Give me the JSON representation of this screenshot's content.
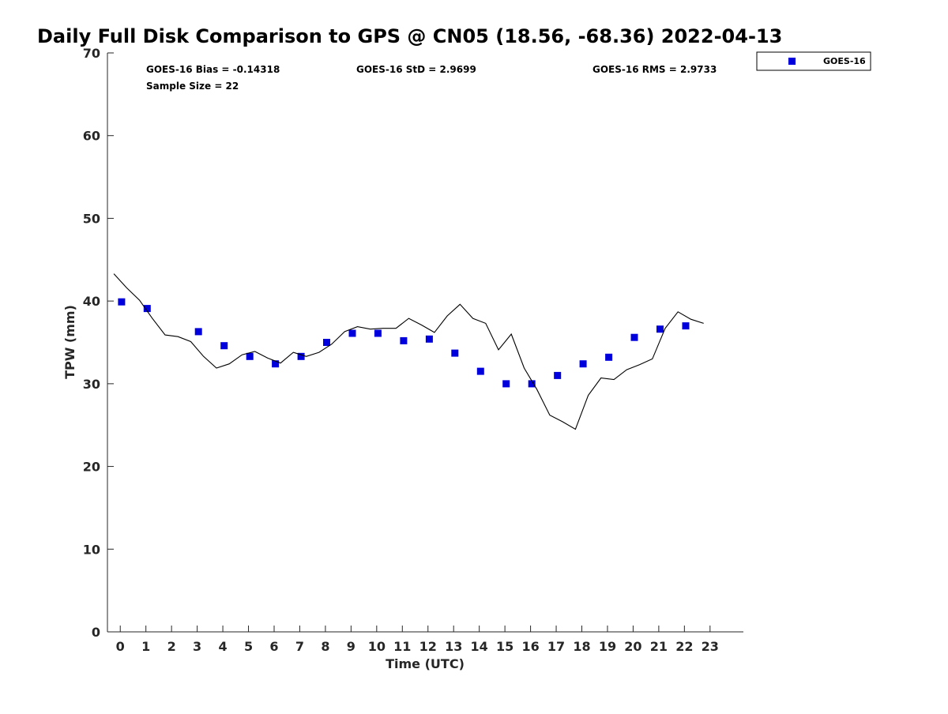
{
  "chart_data": {
    "type": "scatter",
    "title": "Daily Full Disk Comparison to GPS @ CN05 (18.56, -68.36) 2022-04-13",
    "xlabel": "Time (UTC)",
    "ylabel": "TPW (mm)",
    "xlim": [
      -0.5,
      24.3
    ],
    "ylim": [
      0,
      70
    ],
    "x_ticks": [
      0,
      1,
      2,
      3,
      4,
      5,
      6,
      7,
      8,
      9,
      10,
      11,
      12,
      13,
      14,
      15,
      16,
      17,
      18,
      19,
      20,
      21,
      22,
      23
    ],
    "y_ticks": [
      0,
      10,
      20,
      30,
      40,
      50,
      60,
      70
    ],
    "grid": false,
    "legend_position": "top-right, outside plot",
    "stats": {
      "bias": "GOES-16 Bias = -0.14318",
      "std": "GOES-16 StD = 2.9699",
      "rms": "GOES-16 RMS = 2.9733",
      "sample_size": "Sample Size = 22"
    },
    "series": [
      {
        "name": "GOES-16",
        "kind": "markers",
        "marker": "square",
        "color": "#0000dd",
        "x": [
          0.05,
          1.05,
          3.05,
          4.05,
          5.05,
          6.05,
          7.05,
          8.05,
          9.05,
          10.05,
          11.05,
          12.05,
          13.05,
          14.05,
          15.05,
          16.05,
          17.05,
          18.05,
          19.05,
          20.05,
          21.05,
          22.05
        ],
        "y": [
          39.9,
          39.1,
          36.3,
          34.6,
          33.3,
          32.4,
          33.3,
          35.0,
          36.1,
          36.1,
          35.2,
          35.4,
          33.7,
          31.5,
          30.0,
          30.0,
          31.0,
          32.4,
          33.2,
          35.6,
          36.6,
          37.0
        ]
      },
      {
        "kind": "line",
        "color": "#000000",
        "x": [
          -0.25,
          0.25,
          0.75,
          1.25,
          1.75,
          2.25,
          2.75,
          3.25,
          3.75,
          4.25,
          4.75,
          5.25,
          5.75,
          6.25,
          6.75,
          7.25,
          7.75,
          8.25,
          8.75,
          9.25,
          9.75,
          10.25,
          10.75,
          11.25,
          11.75,
          12.25,
          12.75,
          13.25,
          13.75,
          14.25,
          14.75,
          15.25,
          15.75,
          16.25,
          16.75,
          17.25,
          17.75,
          18.25,
          18.75,
          19.25,
          19.75,
          20.25,
          20.75,
          21.25,
          21.75,
          22.25,
          22.75
        ],
        "y": [
          43.3,
          41.6,
          40.1,
          37.9,
          35.9,
          35.7,
          35.1,
          33.3,
          31.9,
          32.4,
          33.5,
          33.9,
          33.1,
          32.5,
          33.8,
          33.3,
          33.8,
          34.8,
          36.3,
          36.9,
          36.6,
          36.7,
          36.7,
          37.9,
          37.1,
          36.2,
          38.2,
          39.6,
          37.9,
          37.3,
          34.1,
          36.0,
          31.9,
          29.3,
          26.2,
          25.4,
          24.5,
          28.6,
          30.7,
          30.5,
          31.7,
          32.3,
          33.0,
          36.7,
          38.7,
          37.8,
          37.3
        ]
      }
    ]
  }
}
